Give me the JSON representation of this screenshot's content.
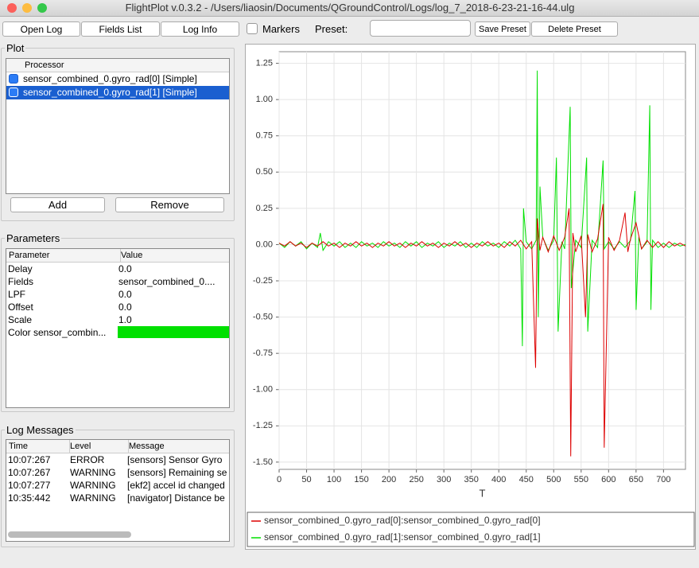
{
  "window": {
    "title": "FlightPlot v.0.3.2 - /Users/liaosin/Documents/QGroundControl/Logs/log_7_2018-6-23-21-16-44.ulg"
  },
  "toolbar": {
    "buttons": [
      "Open Log",
      "Fields List",
      "Log Info"
    ],
    "markers": "Markers",
    "preset": "Preset:",
    "save": "Save Preset",
    "delete": "Delete Preset"
  },
  "plot_panel": {
    "title": "Plot",
    "header": "Processor",
    "rows": [
      "sensor_combined_0.gyro_rad[0] [Simple]",
      "sensor_combined_0.gyro_rad[1] [Simple]"
    ],
    "add": "Add",
    "remove": "Remove"
  },
  "parameters": {
    "title": "Parameters",
    "headers": [
      "Parameter",
      "Value"
    ],
    "rows": [
      [
        "Delay",
        "0.0"
      ],
      [
        "Fields",
        "sensor_combined_0...."
      ],
      [
        "LPF",
        "0.0"
      ],
      [
        "Offset",
        "0.0"
      ],
      [
        "Scale",
        "1.0"
      ],
      [
        "Color sensor_combin..."
      ]
    ]
  },
  "log_messages": {
    "title": "Log Messages",
    "headers": [
      "Time",
      "Level",
      "Message"
    ],
    "rows": [
      [
        "10:07:267",
        "ERROR",
        "[sensors] Sensor Gyro"
      ],
      [
        "10:07:267",
        "WARNING",
        "[sensors] Remaining se"
      ],
      [
        "10:07:277",
        "WARNING",
        "[ekf2] accel id changed"
      ],
      [
        "10:35:442",
        "WARNING",
        "[navigator] Distance be"
      ]
    ]
  },
  "chart_data": {
    "type": "line",
    "xlabel": "T",
    "xlim": [
      0,
      740
    ],
    "ylim": [
      -1.55,
      1.33
    ],
    "xticks": [
      0,
      50,
      100,
      150,
      200,
      250,
      300,
      350,
      400,
      450,
      500,
      550,
      600,
      650,
      700
    ],
    "yticks": [
      1.25,
      {
        "value": 1,
        "label": "1.00"
      },
      0.75,
      {
        "value": 0.5,
        "label": "0.50"
      },
      0.25,
      {
        "value": 0,
        "label": "0.00"
      },
      -0.25,
      {
        "value": -0.5,
        "label": "-0.50"
      },
      -0.75,
      {
        "value": -1,
        "label": "-1.00"
      },
      -1.25,
      {
        "value": -1.5,
        "label": "-1.50"
      }
    ],
    "grid": true,
    "series": [
      {
        "name": "sensor_combined_0.gyro_rad[0]:sensor_combined_0.gyro_rad[0]",
        "color": "#dd0000",
        "x": [
          0,
          10,
          20,
          30,
          40,
          50,
          60,
          70,
          80,
          90,
          100,
          110,
          120,
          130,
          140,
          150,
          160,
          170,
          180,
          190,
          200,
          210,
          220,
          230,
          240,
          250,
          260,
          270,
          280,
          290,
          300,
          310,
          320,
          330,
          340,
          350,
          360,
          370,
          380,
          390,
          400,
          410,
          420,
          430,
          440,
          450,
          460,
          467,
          470,
          475,
          480,
          490,
          500,
          510,
          520,
          528,
          531,
          535,
          540,
          550,
          558,
          562,
          570,
          580,
          590,
          592,
          600,
          610,
          620,
          630,
          635,
          640,
          650,
          660,
          670,
          680,
          690,
          700,
          710,
          720,
          730,
          740
        ],
        "values": [
          0.01,
          -0.01,
          0.02,
          -0.01,
          0.01,
          -0.02,
          0.01,
          -0.01,
          0.02,
          -0.01,
          0.01,
          -0.02,
          0.01,
          -0.01,
          0.02,
          -0.01,
          0.01,
          -0.02,
          0.01,
          -0.01,
          0.02,
          -0.01,
          0.01,
          -0.02,
          0.01,
          -0.01,
          0.02,
          -0.01,
          0.01,
          -0.02,
          0.01,
          -0.01,
          0.02,
          -0.01,
          0.01,
          -0.02,
          0.01,
          -0.01,
          0.02,
          -0.01,
          0.01,
          -0.02,
          0.02,
          -0.01,
          0.03,
          -0.03,
          0.02,
          -0.85,
          0.18,
          -0.04,
          0.05,
          -0.05,
          0.06,
          -0.04,
          0.05,
          0.25,
          -1.46,
          0.08,
          -0.05,
          0.06,
          -0.5,
          0.07,
          -0.05,
          0.04,
          0.28,
          -1.4,
          0.05,
          -0.04,
          0.03,
          0.22,
          -0.05,
          0.04,
          0.15,
          -0.03,
          0.03,
          -0.02,
          0.02,
          -0.02,
          0.02,
          -0.01,
          0.01,
          -0.01
        ]
      },
      {
        "name": "sensor_combined_0.gyro_rad[1]:sensor_combined_0.gyro_rad[1]",
        "color": "#00e000",
        "x": [
          0,
          10,
          20,
          30,
          40,
          50,
          60,
          70,
          75,
          80,
          90,
          100,
          110,
          120,
          130,
          140,
          150,
          160,
          170,
          180,
          190,
          200,
          210,
          220,
          230,
          240,
          250,
          260,
          270,
          280,
          290,
          300,
          310,
          320,
          330,
          340,
          350,
          360,
          370,
          380,
          390,
          400,
          410,
          420,
          430,
          440,
          443,
          445,
          450,
          460,
          468,
          470,
          472,
          475,
          480,
          490,
          500,
          505,
          508,
          515,
          520,
          530,
          532,
          540,
          550,
          560,
          562,
          570,
          580,
          590,
          592,
          600,
          610,
          620,
          630,
          640,
          648,
          650,
          655,
          660,
          670,
          675,
          677,
          680,
          690,
          700,
          710,
          720,
          730,
          740
        ],
        "values": [
          0.01,
          -0.02,
          0.02,
          -0.01,
          0.02,
          -0.03,
          0.01,
          -0.02,
          0.08,
          -0.04,
          0.02,
          -0.01,
          0.02,
          -0.02,
          0.01,
          -0.02,
          0.02,
          -0.01,
          0.01,
          -0.02,
          0.02,
          -0.01,
          0.01,
          -0.02,
          0.02,
          -0.01,
          0.02,
          -0.02,
          0.01,
          -0.01,
          0.02,
          -0.02,
          0.01,
          -0.01,
          0.02,
          -0.02,
          0.01,
          -0.02,
          0.02,
          -0.01,
          0.01,
          -0.02,
          0.02,
          -0.01,
          0.03,
          -0.03,
          -0.7,
          0.25,
          0.02,
          -0.03,
          0.03,
          1.2,
          -0.5,
          0.4,
          0.05,
          -0.04,
          0.03,
          0.6,
          -0.6,
          0.02,
          -0.03,
          0.95,
          -0.3,
          0.03,
          -0.02,
          0.6,
          -0.6,
          0.03,
          -0.02,
          0.58,
          -0.03,
          0.02,
          -0.03,
          0.02,
          -0.02,
          0.03,
          0.37,
          -0.45,
          0.05,
          -0.03,
          0.02,
          0.96,
          -0.45,
          0.03,
          -0.02,
          0.01,
          -0.02,
          0.01,
          -0.01,
          0.0
        ]
      }
    ]
  }
}
